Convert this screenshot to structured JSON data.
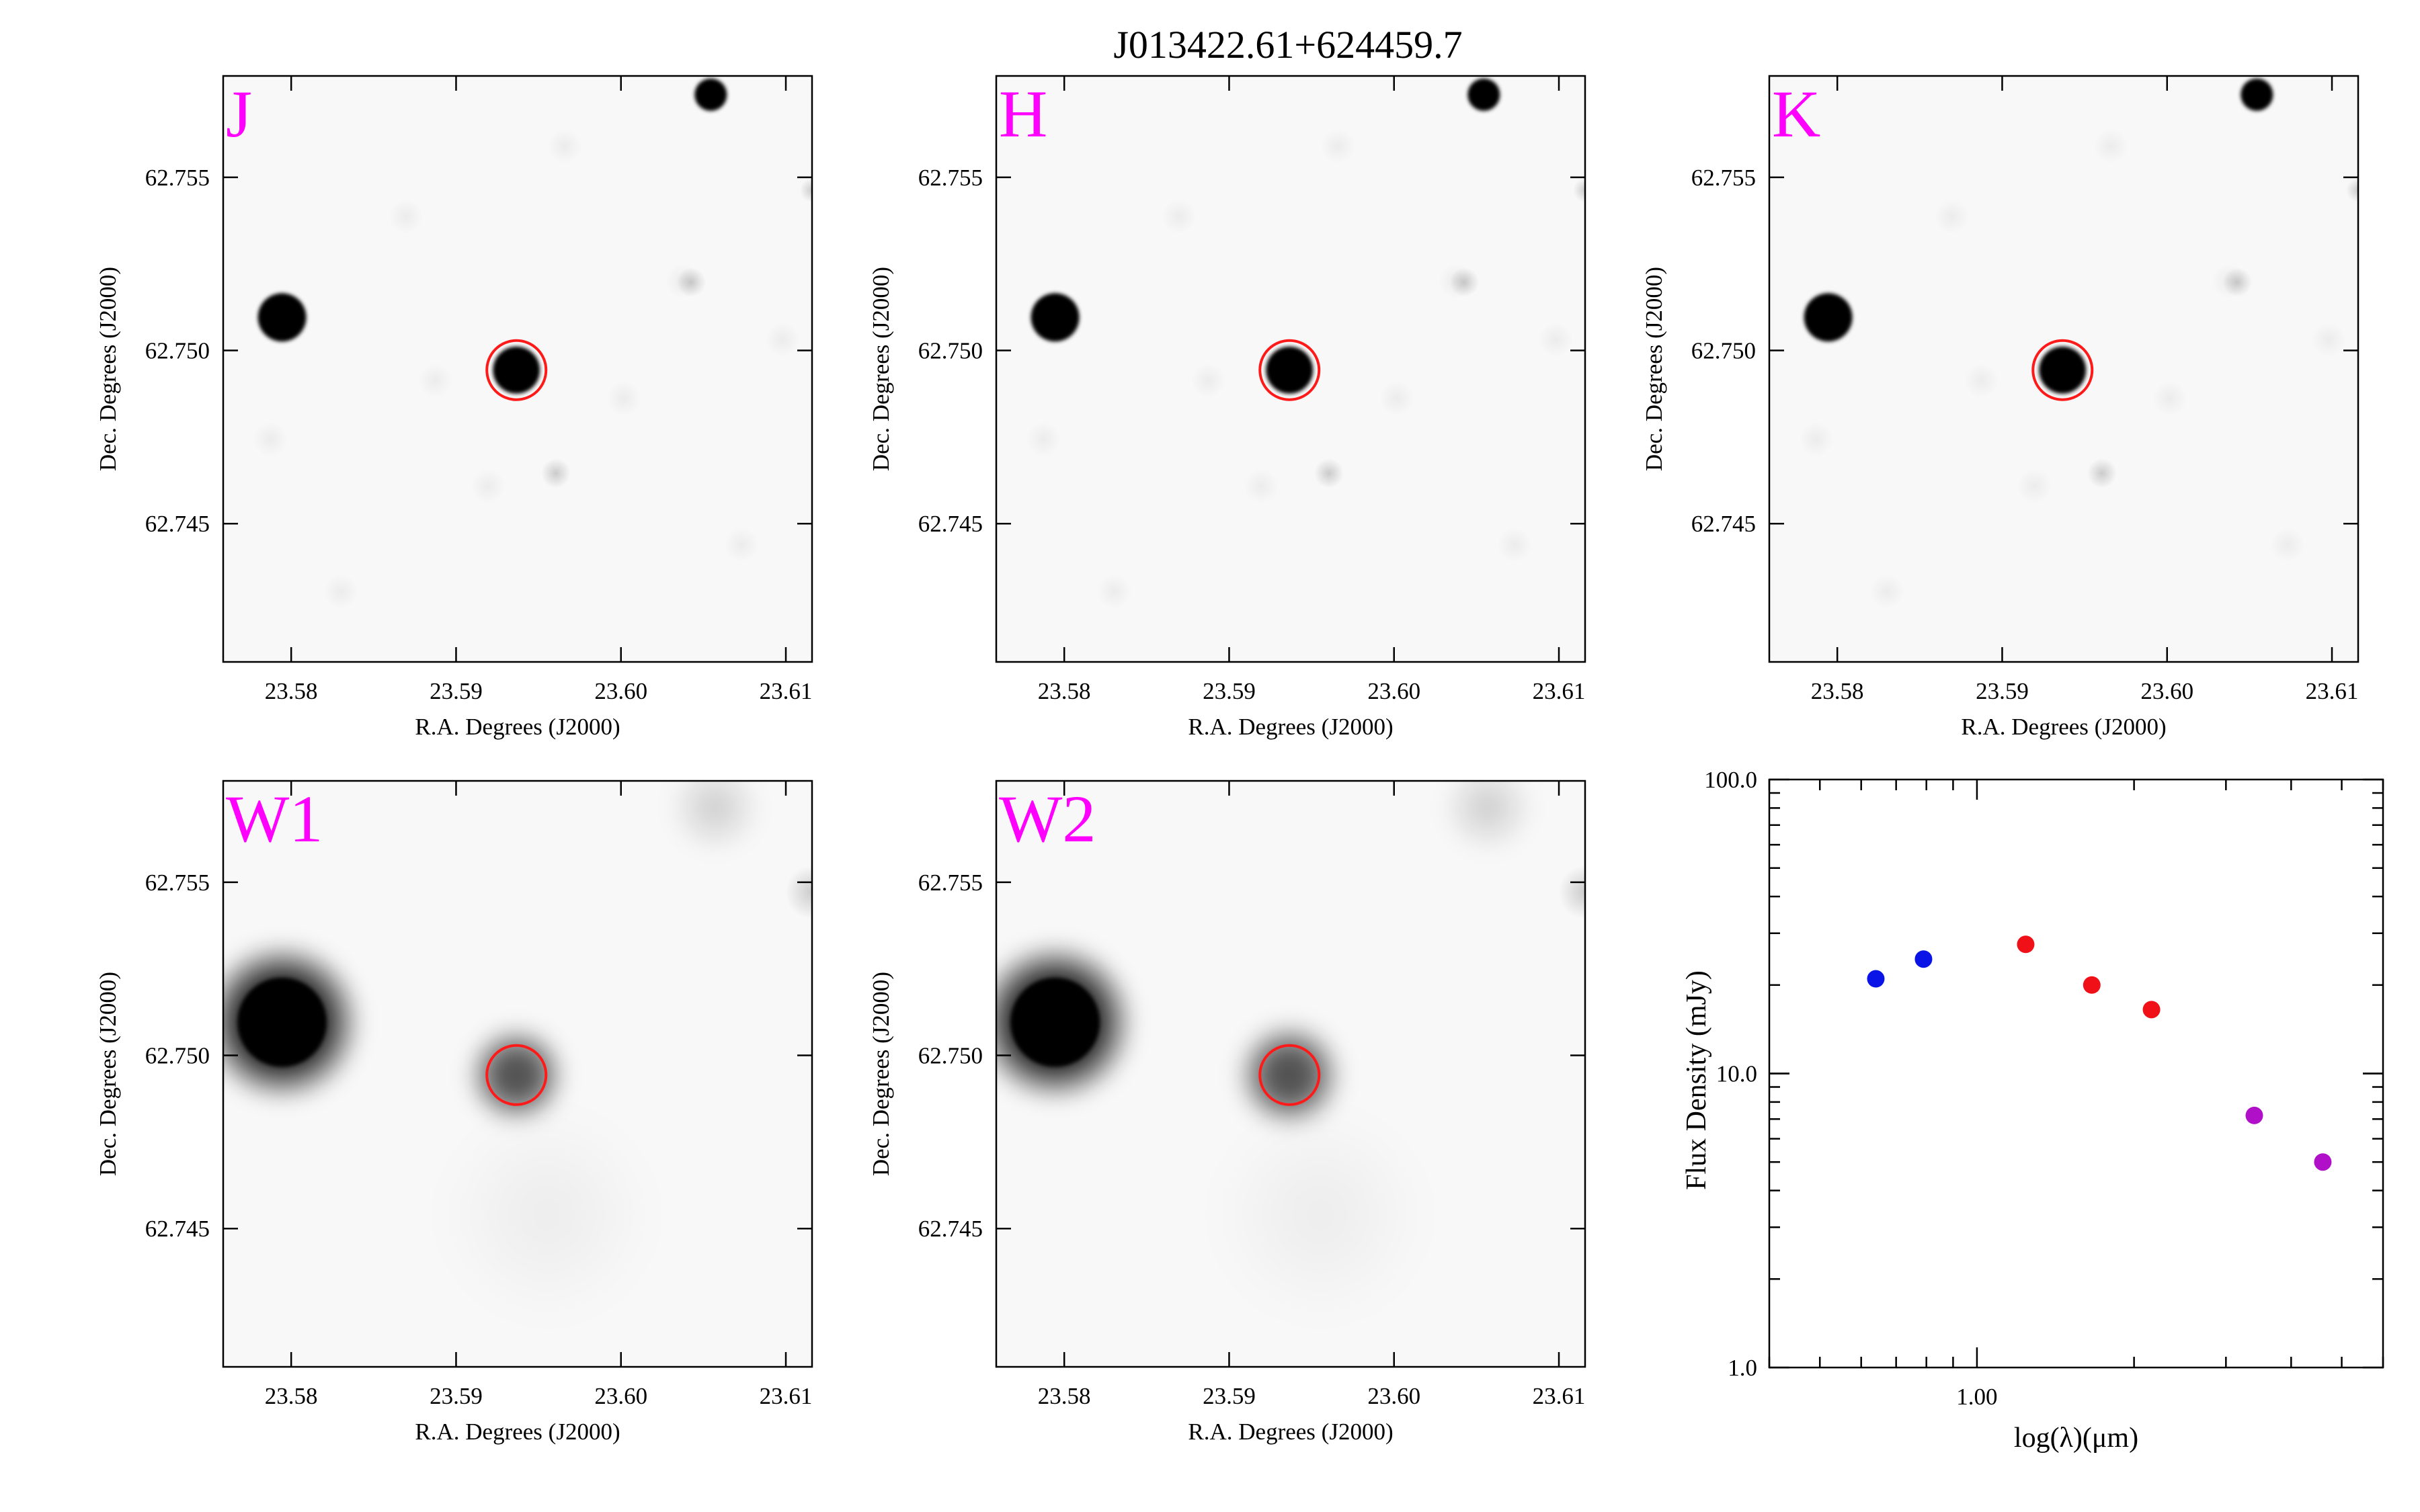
{
  "title": "J013422.61+624459.7",
  "colors": {
    "band_label": "#ff00ff",
    "aperture": "#ff1a1a",
    "optical_points": "#0a14e6",
    "nir_points": "#ef1018",
    "mir_points": "#b010c8"
  },
  "image_panels": {
    "xlabel": "R.A. Degrees (J2000)",
    "ylabel": "Dec. Degrees (J2000)",
    "x_ticks": [
      "23.58",
      "23.59",
      "23.60",
      "23.61"
    ],
    "y_ticks": [
      "62.755",
      "62.750",
      "62.745"
    ],
    "panels": [
      {
        "band": "J"
      },
      {
        "band": "H"
      },
      {
        "band": "K"
      },
      {
        "band": "W1"
      },
      {
        "band": "W2"
      }
    ]
  },
  "chart_data": {
    "type": "scatter",
    "xlabel": "log(λ)(μm)",
    "ylabel": "Flux Density (mJy)",
    "y_scale": "log",
    "x_scale": "log",
    "ylim": [
      1.0,
      100.0
    ],
    "xlim": [
      0.4,
      6.0
    ],
    "x_tick_labels": [
      "1.00"
    ],
    "y_tick_labels": [
      "1.0",
      "10.0",
      "100.0"
    ],
    "series": [
      {
        "color_key": "optical_points",
        "x": [
          0.64,
          0.79
        ],
        "y": [
          21.0,
          24.5
        ]
      },
      {
        "color_key": "nir_points",
        "x": [
          1.24,
          1.66,
          2.16
        ],
        "y": [
          27.5,
          20.0,
          16.5
        ]
      },
      {
        "color_key": "mir_points",
        "x": [
          3.4,
          4.6
        ],
        "y": [
          7.2,
          5.0
        ]
      }
    ]
  }
}
